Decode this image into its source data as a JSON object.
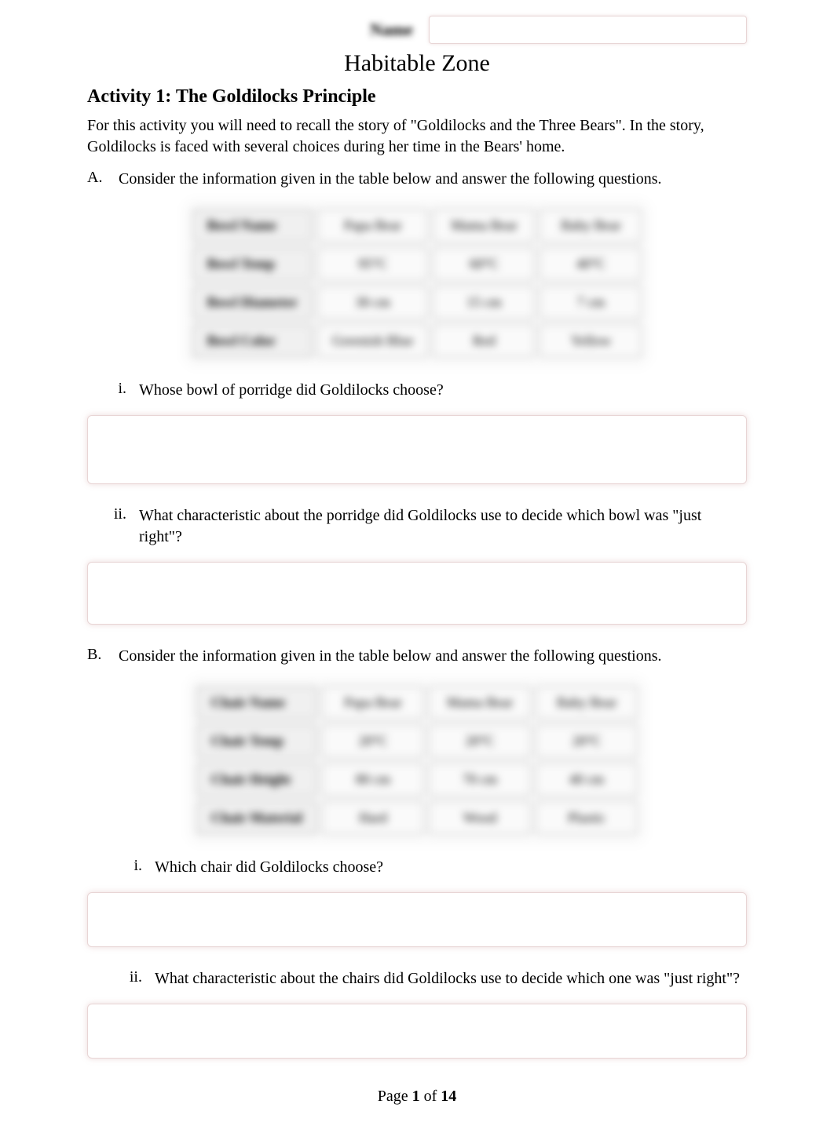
{
  "header": {
    "name_label": "Name",
    "name_value": ""
  },
  "title": "Habitable Zone",
  "activity_title": "Activity 1: The Goldilocks Principle",
  "intro": "For this activity you will need to recall the story of \"Goldilocks and the Three Bears\". In the story, Goldilocks is faced with several choices during her time in the Bears' home.",
  "sectionA": {
    "letter": "A.",
    "text": "Consider the information given in the table below and answer the following questions.",
    "table": {
      "rows": [
        [
          "Bowl Name",
          "Papa Bear",
          "Mama Bear",
          "Baby Bear"
        ],
        [
          "Bowl Temp",
          "95°C",
          "60°C",
          "40°C"
        ],
        [
          "Bowl Diameter",
          "30 cm",
          "15 cm",
          "7 cm"
        ],
        [
          "Bowl Color",
          "Greenish Blue",
          "Red",
          "Yellow"
        ]
      ]
    },
    "questions": [
      {
        "num": "i.",
        "text": "Whose bowl of porridge did Goldilocks choose?",
        "answer": ""
      },
      {
        "num": "ii.",
        "text": "What characteristic about the porridge did Goldilocks use to decide which bowl was \"just right\"?",
        "answer": ""
      }
    ]
  },
  "sectionB": {
    "letter": "B.",
    "text": "Consider the information given in the table below and answer the following questions.",
    "table": {
      "rows": [
        [
          "Chair Name",
          "Papa Bear",
          "Mama Bear",
          "Baby Bear"
        ],
        [
          "Chair Temp",
          "20°C",
          "20°C",
          "20°C"
        ],
        [
          "Chair Height",
          "80 cm",
          "70 cm",
          "40 cm"
        ],
        [
          "Chair Material",
          "Hard",
          "Wood",
          "Plastic"
        ]
      ]
    },
    "questions": [
      {
        "num": "i.",
        "text": "Which chair did Goldilocks choose?",
        "answer": ""
      },
      {
        "num": "ii.",
        "text": "What characteristic about the chairs did Goldilocks use to decide which one was \"just right\"?",
        "answer": ""
      }
    ]
  },
  "footer": {
    "prefix": "Page ",
    "current": "1",
    "sep": " of ",
    "total": "14"
  }
}
